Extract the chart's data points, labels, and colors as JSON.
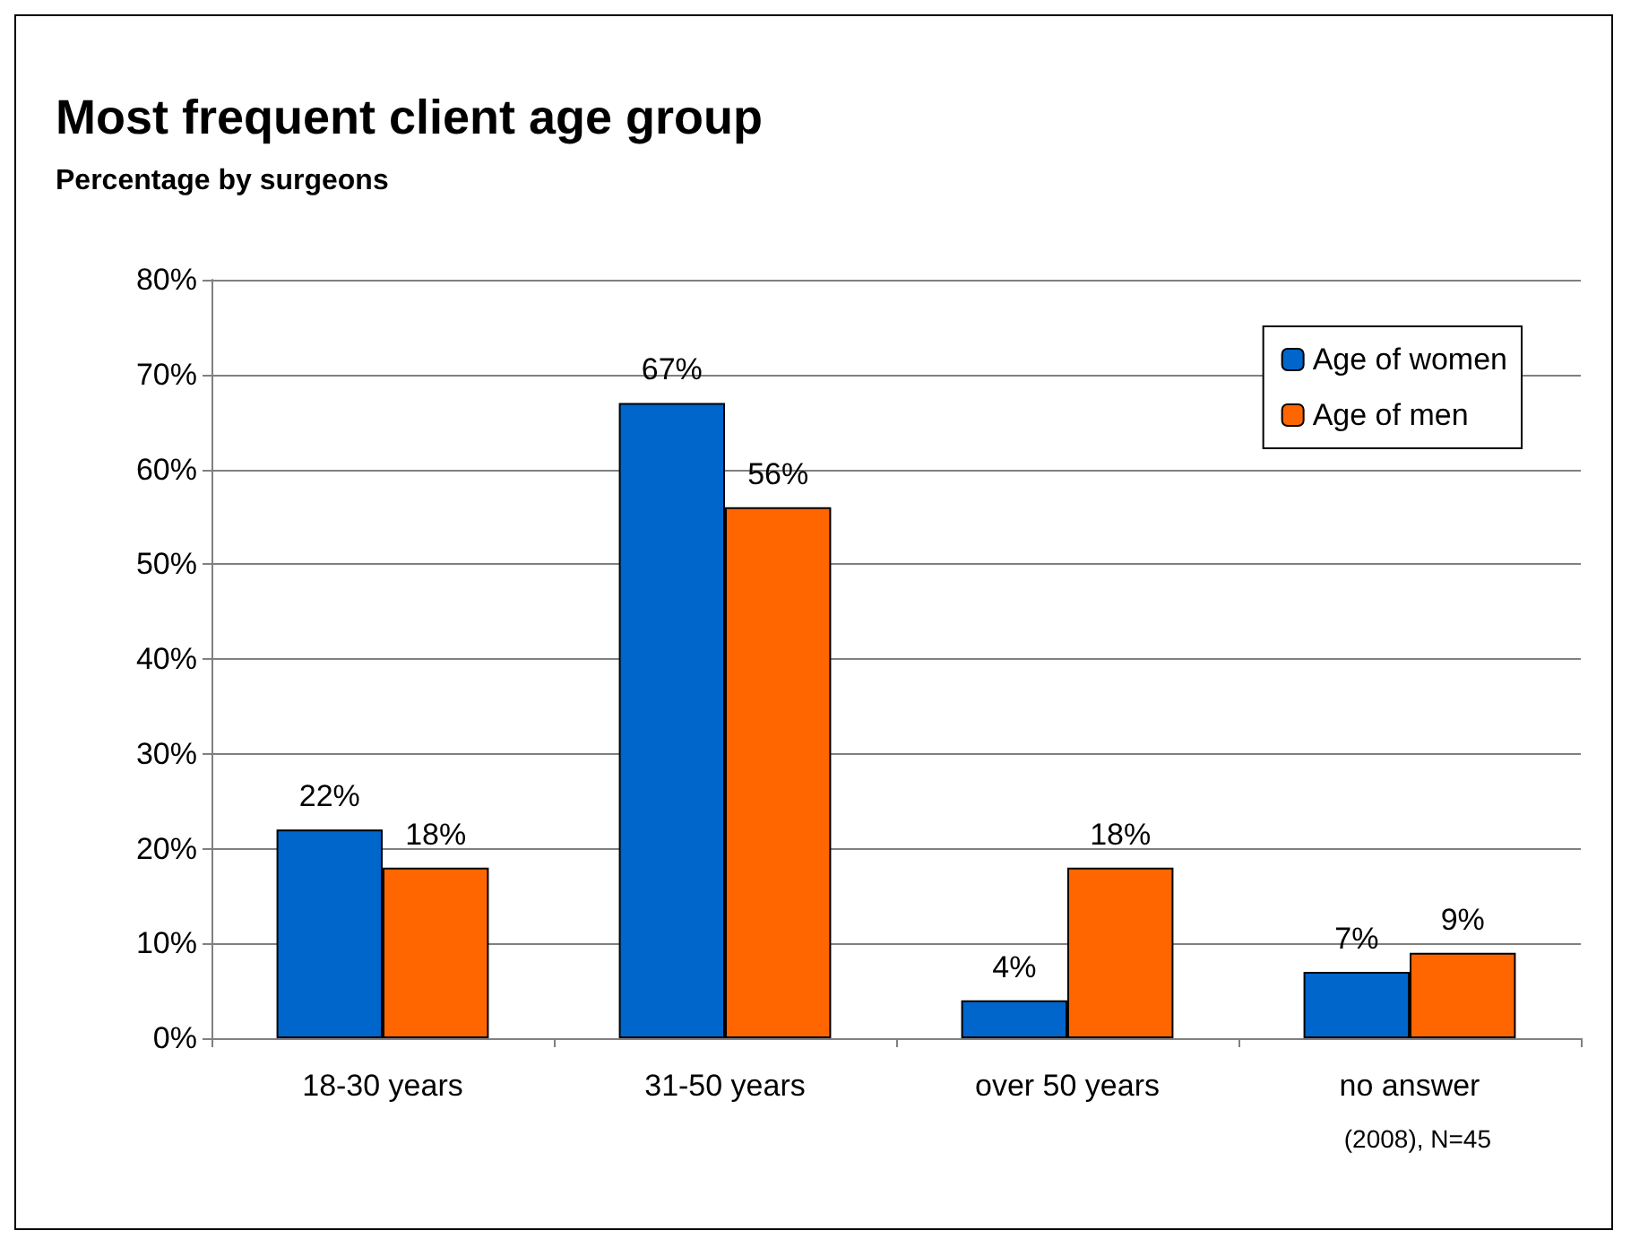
{
  "chart_data": {
    "type": "bar",
    "title": "Most frequent client age group",
    "subtitle": "Percentage by surgeons",
    "categories": [
      "18-30 years",
      "31-50 years",
      "over 50 years",
      "no answer"
    ],
    "series": [
      {
        "name": "Age of women",
        "color": "#0066cc",
        "values": [
          22,
          67,
          4,
          7
        ],
        "value_labels": [
          "22%",
          "67%",
          "4%",
          "7%"
        ]
      },
      {
        "name": "Age of men",
        "color": "#ff6600",
        "values": [
          18,
          56,
          18,
          9
        ],
        "value_labels": [
          "18%",
          "56%",
          "18%",
          "9%"
        ]
      }
    ],
    "ylim": [
      0,
      80
    ],
    "yticks": [
      {
        "value": 0,
        "label": "0%"
      },
      {
        "value": 10,
        "label": "10%"
      },
      {
        "value": 20,
        "label": "20%"
      },
      {
        "value": 30,
        "label": "30%"
      },
      {
        "value": 40,
        "label": "40%"
      },
      {
        "value": 50,
        "label": "50%"
      },
      {
        "value": 60,
        "label": "60%"
      },
      {
        "value": 70,
        "label": "70%"
      },
      {
        "value": 80,
        "label": "80%"
      }
    ],
    "grid": "y",
    "legend": "top right",
    "annotations": [
      "(2008), N=45"
    ]
  }
}
